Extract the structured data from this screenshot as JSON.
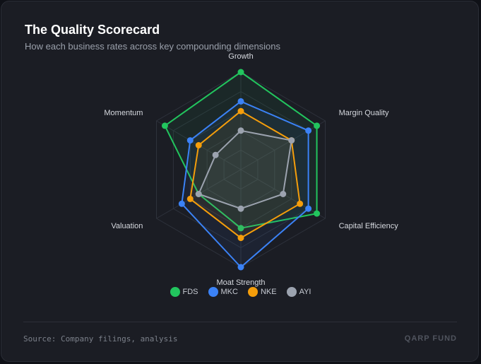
{
  "card": {
    "title": "The Quality Scorecard",
    "subtitle": "How each business rates across key compounding dimensions"
  },
  "chart_data": {
    "type": "radar",
    "title": "The Quality Scorecard",
    "subtitle": "How each business rates across key compounding dimensions",
    "axes": [
      "Growth",
      "Margin Quality",
      "Capital Efficiency",
      "Moat Strength",
      "Valuation",
      "Momentum"
    ],
    "range": [
      0,
      10
    ],
    "grid_levels": 5,
    "legend_position": "bottom",
    "series": [
      {
        "name": "FDS",
        "color": "#22c55e",
        "values": [
          10,
          9,
          9,
          6,
          5,
          9
        ]
      },
      {
        "name": "MKC",
        "color": "#3b82f6",
        "values": [
          7,
          8,
          8,
          10,
          7,
          6
        ]
      },
      {
        "name": "NKE",
        "color": "#f59e0b",
        "values": [
          6,
          6,
          7,
          7,
          6,
          5
        ]
      },
      {
        "name": "AYI",
        "color": "#9ca3af",
        "values": [
          4,
          6,
          5,
          4,
          5,
          3
        ]
      }
    ]
  },
  "footer": {
    "source": "Source: Company filings, analysis",
    "brand": "QARP FUND"
  }
}
